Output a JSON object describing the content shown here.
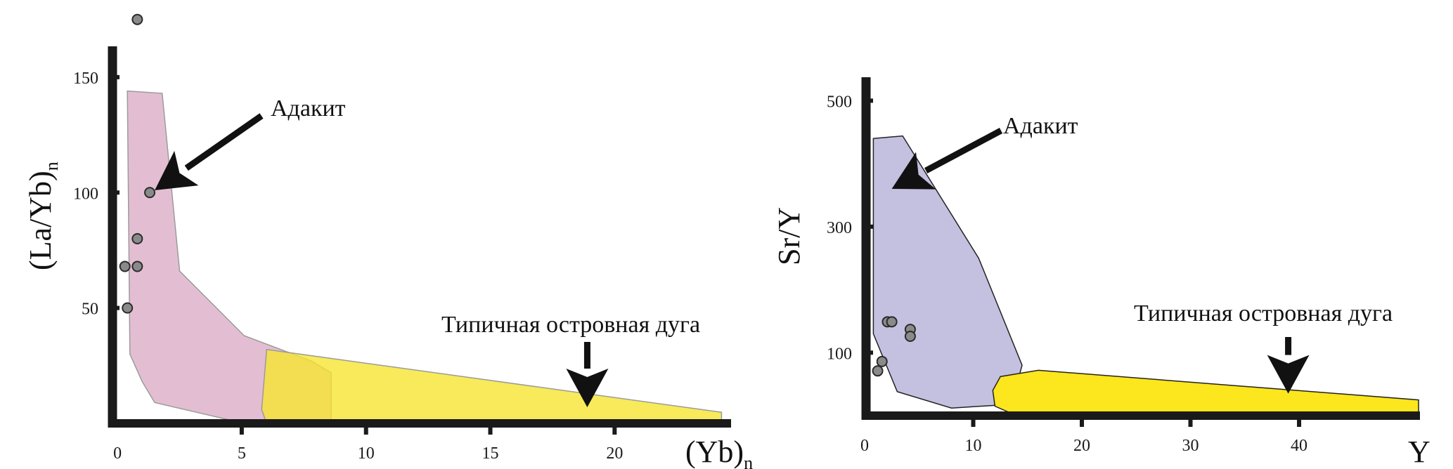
{
  "chart_data": [
    {
      "type": "scatter",
      "xlabel": "(Yb)",
      "xlabel_sub": "n",
      "ylabel": "(La/Yb)",
      "ylabel_sub": "n",
      "xlim": [
        -0.2,
        24.6
      ],
      "ylim": [
        0,
        160
      ],
      "xticks": [
        0,
        5,
        10,
        15,
        20
      ],
      "yticks": [
        50,
        100,
        150
      ],
      "points": [
        {
          "x": 0.8,
          "y": 175
        },
        {
          "x": 1.3,
          "y": 100
        },
        {
          "x": 0.8,
          "y": 80
        },
        {
          "x": 0.3,
          "y": 68
        },
        {
          "x": 0.8,
          "y": 68
        },
        {
          "x": 0.4,
          "y": 50
        }
      ],
      "fields": [
        {
          "name": "Адакит",
          "color": "#d9a8c3",
          "polygon": [
            [
              0.4,
              144
            ],
            [
              1.8,
              143
            ],
            [
              2.5,
              66
            ],
            [
              5.1,
              38
            ],
            [
              7.8,
              27
            ],
            [
              8.6,
              22
            ],
            [
              8.6,
              0
            ],
            [
              5.1,
              0
            ],
            [
              1.5,
              9
            ],
            [
              1.0,
              18
            ],
            [
              0.5,
              30
            ]
          ]
        },
        {
          "name": "Типичная островная дуга",
          "color": "#f6e531",
          "polygon": [
            [
              6.0,
              32
            ],
            [
              24.3,
              4.8
            ],
            [
              24.3,
              0
            ],
            [
              6.0,
              0
            ],
            [
              5.8,
              6
            ]
          ]
        }
      ],
      "annotations": [
        {
          "text": "Адакит",
          "arrow_to": [
            1.5,
            101
          ]
        },
        {
          "text": "Типичная островная дуга",
          "arrow_to": [
            18.9,
            7
          ]
        }
      ]
    },
    {
      "type": "scatter",
      "xlabel": "Y",
      "ylabel": "Sr/Y",
      "xlim": [
        0,
        51
      ],
      "ylim": [
        0,
        535
      ],
      "xticks": [
        0,
        10,
        20,
        30,
        40
      ],
      "yticks": [
        100,
        300,
        500
      ],
      "points": [
        {
          "x": 2.1,
          "y": 149
        },
        {
          "x": 2.5,
          "y": 149
        },
        {
          "x": 4.2,
          "y": 137
        },
        {
          "x": 4.2,
          "y": 126
        },
        {
          "x": 1.6,
          "y": 86
        },
        {
          "x": 1.2,
          "y": 71
        }
      ],
      "fields": [
        {
          "name": "Адакит",
          "color": "#c4c0e0",
          "polygon": [
            [
              0.8,
              440
            ],
            [
              3.5,
              444
            ],
            [
              10.5,
              250
            ],
            [
              14.5,
              80
            ],
            [
              13.5,
              18
            ],
            [
              8.0,
              12
            ],
            [
              3.0,
              38
            ],
            [
              0.8,
              130
            ]
          ]
        },
        {
          "name": "Типичная островная дуга",
          "color": "#fce61d",
          "polygon": [
            [
              12.5,
              62
            ],
            [
              16.0,
              72
            ],
            [
              51.0,
              25
            ],
            [
              51.0,
              5
            ],
            [
              14.0,
              0
            ],
            [
              12.0,
              15
            ],
            [
              11.8,
              40
            ]
          ]
        }
      ],
      "annotations": [
        {
          "text": "Адакит",
          "arrow_to": [
            2.5,
            360
          ]
        },
        {
          "text": "Типичная островная дуга",
          "arrow_to": [
            39.0,
            35
          ]
        }
      ]
    }
  ]
}
